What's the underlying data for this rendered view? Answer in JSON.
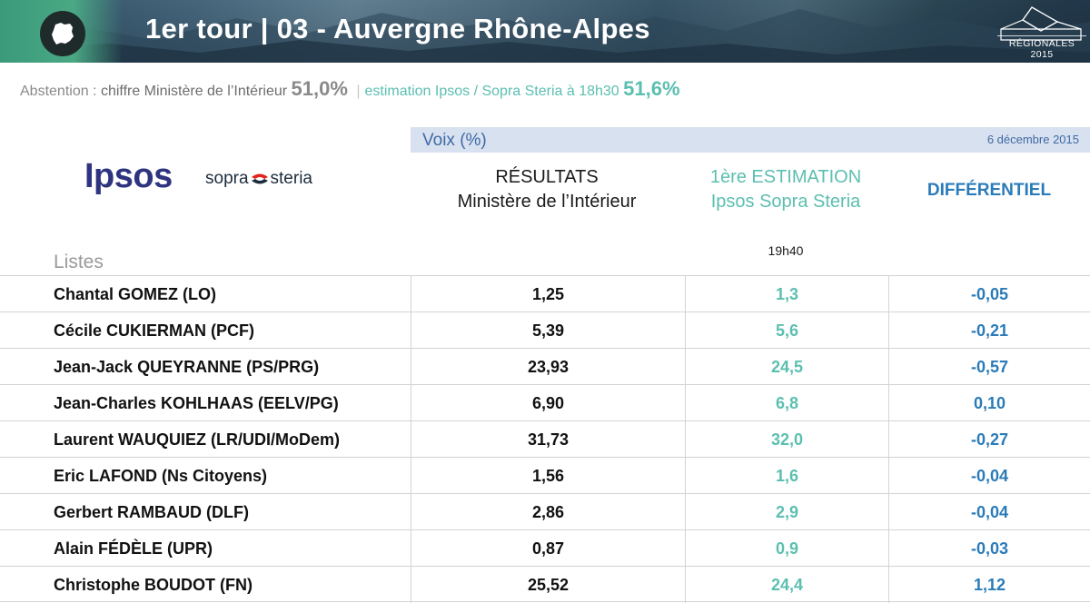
{
  "header": {
    "title": "1er tour | 03 - Auvergne Rhône-Alpes",
    "brand_label": "RÉGIONALES 2015",
    "map_icon": "france-map-icon",
    "brand_icon": "ballot-box-icon"
  },
  "abstention": {
    "label": "Abstention : ",
    "ministere_label": "chiffre Ministère de l’Intérieur",
    "ministere_value": "51,0%",
    "separator": "|",
    "estimation_label": "estimation Ipsos / Sopra Steria à 18h30",
    "estimation_value": "51,6%"
  },
  "voix_bar": {
    "label": "Voix (%)",
    "date": "6 décembre 2015"
  },
  "logos": {
    "ipsos": "Ipsos",
    "sopra_left": "sopra",
    "sopra_right": "steria"
  },
  "columns": {
    "results_line1": "RÉSULTATS",
    "results_line2": "Ministère de l’Intérieur",
    "estimation_line1": "1ère ESTIMATION",
    "estimation_line2": "Ipsos Sopra Steria",
    "differential": "DIFFÉRENTIEL",
    "time": "19h40",
    "listes": "Listes"
  },
  "rows": [
    {
      "name": "Chantal GOMEZ (LO)",
      "result": "1,25",
      "estimation": "1,3",
      "diff": "-0,05"
    },
    {
      "name": "Cécile CUKIERMAN (PCF)",
      "result": "5,39",
      "estimation": "5,6",
      "diff": "-0,21"
    },
    {
      "name": "Jean-Jack QUEYRANNE (PS/PRG)",
      "result": "23,93",
      "estimation": "24,5",
      "diff": "-0,57"
    },
    {
      "name": "Jean-Charles KOHLHAAS (EELV/PG)",
      "result": "6,90",
      "estimation": "6,8",
      "diff": "0,10"
    },
    {
      "name": "Laurent WAUQUIEZ (LR/UDI/MoDem)",
      "result": "31,73",
      "estimation": "32,0",
      "diff": "-0,27"
    },
    {
      "name": "Eric LAFOND (Ns Citoyens)",
      "result": "1,56",
      "estimation": "1,6",
      "diff": "-0,04"
    },
    {
      "name": "Gerbert RAMBAUD (DLF)",
      "result": "2,86",
      "estimation": "2,9",
      "diff": "-0,04"
    },
    {
      "name": "Alain FÉDÈLE (UPR)",
      "result": "0,87",
      "estimation": "0,9",
      "diff": "-0,03"
    },
    {
      "name": "Christophe BOUDOT (FN)",
      "result": "25,52",
      "estimation": "24,4",
      "diff": "1,12"
    }
  ],
  "colors": {
    "teal": "#5bbfb0",
    "blue": "#2a7bb8",
    "voix_bar": "#d8e1ef",
    "ipsos": "#2f3480",
    "header_green": "#4aa884"
  }
}
